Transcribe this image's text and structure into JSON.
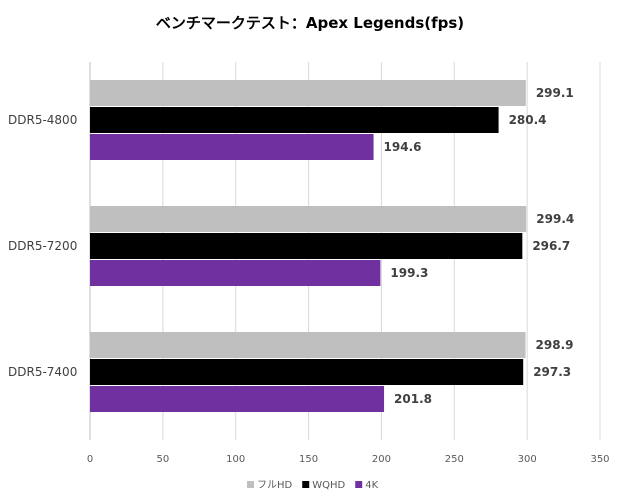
{
  "chart_data": {
    "type": "bar",
    "orientation": "horizontal",
    "title": "ベンチマークテスト：Apex Legends(fps)",
    "categories": [
      "DDR5-4800",
      "DDR5-7200",
      "DDR5-7400"
    ],
    "series": [
      {
        "name": "フルHD",
        "color": "#bfbfbf",
        "values": [
          299.1,
          299.4,
          298.9
        ]
      },
      {
        "name": "WQHD",
        "color": "#000000",
        "values": [
          280.4,
          296.7,
          297.3
        ]
      },
      {
        "name": "4K",
        "color": "#7030a0",
        "values": [
          194.6,
          199.3,
          201.8
        ]
      }
    ],
    "xlim": [
      0,
      350
    ],
    "xticks": [
      0,
      50,
      100,
      150,
      200,
      250,
      300,
      350
    ],
    "grid": true,
    "legend": "bottom",
    "xlabel": "",
    "ylabel": ""
  }
}
